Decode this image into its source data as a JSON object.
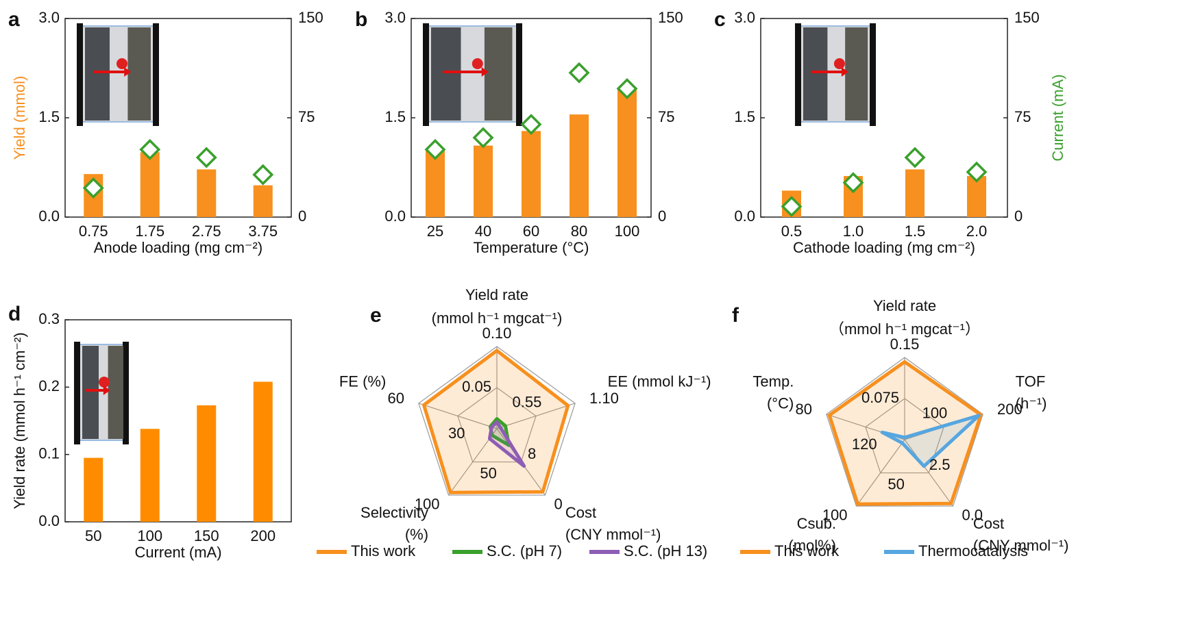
{
  "chart_data": [
    {
      "type": "bar",
      "label": "a",
      "xlabel": "Anode loading (mg cm⁻²)",
      "ylabel": "Yield (mmol)",
      "categories": [
        "0.75",
        "1.75",
        "2.75",
        "3.75"
      ],
      "series": [
        {
          "kind": "bar",
          "color": "#f7901e",
          "values": [
            0.65,
            0.98,
            0.72,
            0.48
          ]
        },
        {
          "kind": "diamond",
          "axis": "y2",
          "color": "#3aa02c",
          "values": [
            22,
            51,
            45,
            32
          ]
        }
      ],
      "ylim": [
        0,
        3
      ],
      "yticks": [
        {
          "value": 0,
          "label": "0.0"
        },
        1.5,
        {
          "value": 3,
          "label": "3.0"
        }
      ],
      "y2lim": [
        0,
        150
      ],
      "y2ticks": [
        0,
        75,
        150
      ]
    },
    {
      "type": "bar",
      "label": "b",
      "xlabel": "Temperature (°C)",
      "categories": [
        "25",
        "40",
        "60",
        "80",
        "100"
      ],
      "series": [
        {
          "kind": "bar",
          "color": "#f7901e",
          "values": [
            1.0,
            1.08,
            1.3,
            1.55,
            1.95
          ]
        },
        {
          "kind": "diamond",
          "axis": "y2",
          "color": "#3aa02c",
          "values": [
            51,
            60,
            70,
            109,
            97
          ]
        }
      ],
      "ylim": [
        0,
        3
      ],
      "yticks": [
        {
          "value": 0,
          "label": "0.0"
        },
        1.5,
        {
          "value": 3,
          "label": "3.0"
        }
      ],
      "y2lim": [
        0,
        150
      ],
      "y2ticks": [
        0,
        75,
        150
      ]
    },
    {
      "type": "bar",
      "label": "c",
      "xlabel": "Cathode loading (mg cm⁻²)",
      "y2label": "Current (mA)",
      "categories": [
        "0.5",
        "1.0",
        "1.5",
        "2.0"
      ],
      "series": [
        {
          "kind": "bar",
          "color": "#f7901e",
          "values": [
            0.4,
            0.62,
            0.72,
            0.62
          ]
        },
        {
          "kind": "diamond",
          "axis": "y2",
          "color": "#3aa02c",
          "values": [
            8,
            26,
            45,
            34
          ]
        }
      ],
      "ylim": [
        0,
        3
      ],
      "yticks": [
        {
          "value": 0,
          "label": "0.0"
        },
        1.5,
        {
          "value": 3,
          "label": "3.0"
        }
      ],
      "y2lim": [
        0,
        150
      ],
      "y2ticks": [
        0,
        75,
        150
      ]
    },
    {
      "type": "bar",
      "label": "d",
      "xlabel": "Current (mA)",
      "ylabel": "Yield rate (mmol h⁻¹ cm⁻²)",
      "categories": [
        "50",
        "100",
        "150",
        "200"
      ],
      "series": [
        {
          "kind": "bar",
          "color": "#ff8c00",
          "values": [
            0.095,
            0.138,
            0.173,
            0.208
          ]
        }
      ],
      "ylim": [
        0,
        0.3
      ],
      "yticks": [
        {
          "value": 0,
          "label": "0.0"
        },
        0.1,
        0.2,
        0.3
      ]
    },
    {
      "type": "radar",
      "label": "e",
      "axes": [
        {
          "label": [
            "Yield rate",
            "(mmol h⁻¹ mgcat⁻¹)"
          ],
          "lim": [
            0,
            0.1
          ],
          "ticks": [
            0.05,
            {
              "value": 0.1,
              "label": "0.10"
            }
          ]
        },
        {
          "label": [
            "EE (mmol kJ⁻¹)"
          ],
          "lim": [
            0,
            1.1
          ],
          "ticks": [
            0.55,
            {
              "value": 1.1,
              "label": "1.10"
            }
          ]
        },
        {
          "label": [
            "Cost",
            "(CNY mmol⁻¹)"
          ],
          "lim": [
            16,
            0
          ],
          "ticks": [
            8,
            0
          ]
        },
        {
          "label": [
            "Selectivity",
            "(%)"
          ],
          "lim": [
            0,
            100
          ],
          "ticks": [
            50,
            100
          ]
        },
        {
          "label": [
            "FE (%)"
          ],
          "lim": [
            0,
            60
          ],
          "ticks": [
            30,
            60
          ]
        }
      ],
      "series": [
        {
          "name": "This work",
          "color": "#f7901e",
          "values": [
            0.095,
            1.0,
            0.8,
            96,
            56
          ]
        },
        {
          "name": "S.C. (pH 7)",
          "color": "#3aa02c",
          "values": [
            0.012,
            0.12,
            12,
            10,
            5
          ]
        },
        {
          "name": "S.C. (pH 13)",
          "color": "#8e5db4",
          "values": [
            0.008,
            0.05,
            7,
            15,
            4
          ]
        }
      ]
    },
    {
      "type": "radar",
      "label": "f",
      "axes": [
        {
          "label": [
            "Yield rate",
            "（mmol h⁻¹ mgcat⁻¹）"
          ],
          "lim": [
            0,
            0.15
          ],
          "ticks": [
            0.075,
            0.15
          ]
        },
        {
          "label": [
            "TOF",
            "(h⁻¹)"
          ],
          "lim": [
            0,
            200
          ],
          "ticks": [
            100,
            200
          ]
        },
        {
          "label": [
            "Cost",
            "(CNY mmol⁻¹)"
          ],
          "lim": [
            5,
            0
          ],
          "ticks": [
            2.5,
            {
              "value": 0,
              "label": "0.0"
            }
          ]
        },
        {
          "label": [
            "Csub.",
            "(mol%)"
          ],
          "lim": [
            0,
            100
          ],
          "ticks": [
            50,
            100
          ]
        },
        {
          "label": [
            "Temp.",
            "(°C)"
          ],
          "lim": [
            160,
            80
          ],
          "ticks": [
            120,
            80
          ]
        }
      ],
      "series": [
        {
          "name": "This work",
          "color": "#f7901e",
          "values": [
            0.142,
            195,
            0.2,
            97,
            83
          ]
        },
        {
          "name": "Thermocatalysis",
          "color": "#56a6e0",
          "values": [
            0.004,
            190,
            3.0,
            5,
            137
          ]
        }
      ]
    }
  ]
}
